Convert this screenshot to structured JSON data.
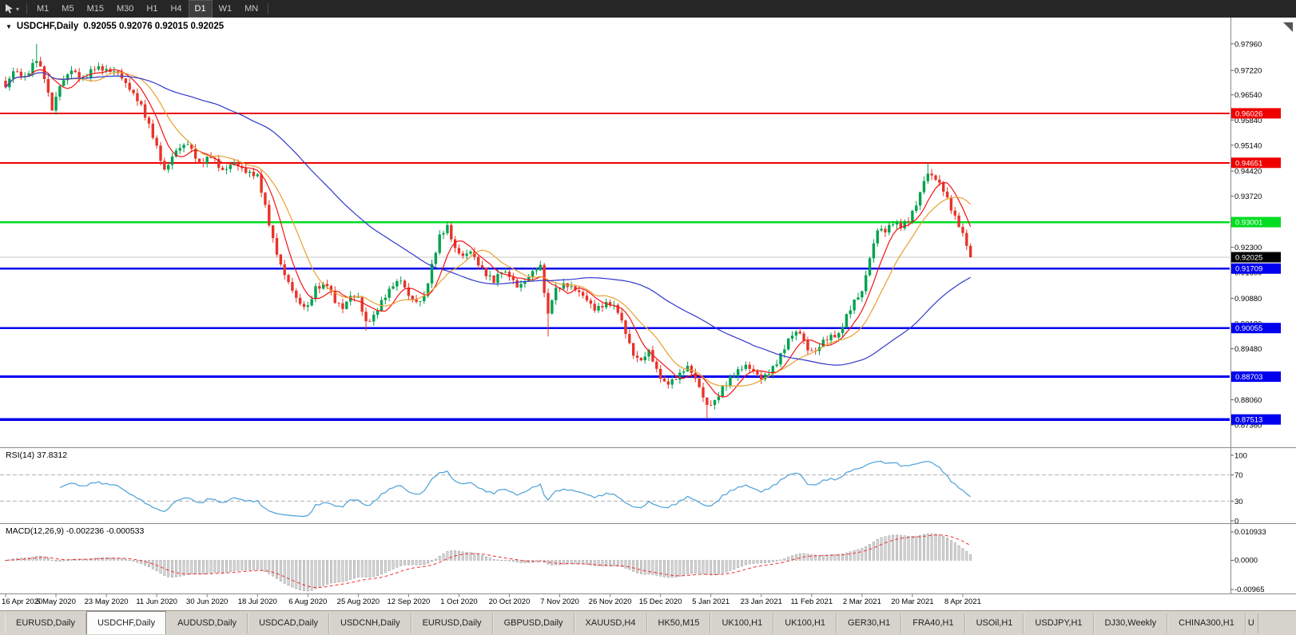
{
  "toolbar": {
    "timeframes": [
      "M1",
      "M5",
      "M15",
      "M30",
      "H1",
      "H4",
      "D1",
      "W1",
      "MN"
    ],
    "active_timeframe": "D1",
    "cursor_tool_icon": "cursor-arrow",
    "dropdown_caret": "▾"
  },
  "chart": {
    "collapse_icon": "▼",
    "symbol": "USDCHF,Daily",
    "ohlc": "0.92055 0.92076 0.92015 0.92025"
  },
  "chart_data": {
    "type": "candlestick",
    "symbol": "USDCHF",
    "timeframe": "Daily",
    "last_open": 0.92055,
    "last_high": 0.92076,
    "last_low": 0.92015,
    "current_price": 0.92025,
    "price_range": {
      "top": 0.986,
      "bottom": 0.8725
    },
    "price_axis_ticks": [
      "0.97960",
      "0.97220",
      "0.96540",
      "0.95840",
      "0.95140",
      "0.94420",
      "0.93720",
      "0.93020",
      "0.92300",
      "0.91600",
      "0.90880",
      "0.90180",
      "0.89480",
      "0.88780",
      "0.88060",
      "0.87360"
    ],
    "x_labels": [
      "16 Apr 2020",
      "5 May 2020",
      "23 May 2020",
      "11 Jun 2020",
      "30 Jun 2020",
      "18 Jul 2020",
      "6 Aug 2020",
      "25 Aug 2020",
      "12 Sep 2020",
      "1 Oct 2020",
      "20 Oct 2020",
      "7 Nov 2020",
      "26 Nov 2020",
      "15 Dec 2020",
      "5 Jan 2021",
      "23 Jan 2021",
      "11 Feb 2021",
      "2 Mar 2021",
      "20 Mar 2021",
      "8 Apr 2021"
    ],
    "candle_count": 250,
    "candles_per_label": 13,
    "levels": [
      {
        "price": 0.96026,
        "color": "#ee0000",
        "width": 2
      },
      {
        "price": 0.94651,
        "color": "#ee0000",
        "width": 2
      },
      {
        "price": 0.93001,
        "color": "#00dd22",
        "width": 2.5
      },
      {
        "price": 0.91709,
        "color": "#0000ee",
        "width": 2.5
      },
      {
        "price": 0.90055,
        "color": "#0000ee",
        "width": 2.5
      },
      {
        "price": 0.88703,
        "color": "#0000ee",
        "width": 3
      },
      {
        "price": 0.87513,
        "color": "#0000ee",
        "width": 3.5
      }
    ],
    "candle_up_color": "#00a24f",
    "candle_down_color": "#e8332a",
    "moving_averages": [
      {
        "period": 7,
        "color": "#f01414"
      },
      {
        "period": 14,
        "color": "#e8a030"
      },
      {
        "period": 55,
        "color": "#3038cc"
      }
    ],
    "close_path": [
      [
        0,
        0.9675
      ],
      [
        2,
        0.972
      ],
      [
        5,
        0.97
      ],
      [
        8,
        0.9755
      ],
      [
        10,
        0.9705
      ],
      [
        12,
        0.9615
      ],
      [
        14,
        0.968
      ],
      [
        17,
        0.9725
      ],
      [
        20,
        0.97
      ],
      [
        23,
        0.973
      ],
      [
        26,
        0.972
      ],
      [
        29,
        0.9715
      ],
      [
        32,
        0.967
      ],
      [
        35,
        0.962
      ],
      [
        38,
        0.954
      ],
      [
        41,
        0.9445
      ],
      [
        44,
        0.95
      ],
      [
        47,
        0.952
      ],
      [
        50,
        0.9465
      ],
      [
        53,
        0.9485
      ],
      [
        56,
        0.944
      ],
      [
        59,
        0.9465
      ],
      [
        62,
        0.944
      ],
      [
        65,
        0.9425
      ],
      [
        67,
        0.934
      ],
      [
        69,
        0.925
      ],
      [
        71,
        0.918
      ],
      [
        74,
        0.911
      ],
      [
        76,
        0.907
      ],
      [
        78,
        0.9065
      ],
      [
        80,
        0.912
      ],
      [
        83,
        0.913
      ],
      [
        85,
        0.908
      ],
      [
        87,
        0.906
      ],
      [
        89,
        0.9095
      ],
      [
        91,
        0.909
      ],
      [
        93,
        0.902
      ],
      [
        95,
        0.9035
      ],
      [
        97,
        0.9075
      ],
      [
        100,
        0.9125
      ],
      [
        102,
        0.914
      ],
      [
        104,
        0.9095
      ],
      [
        106,
        0.9075
      ],
      [
        108,
        0.909
      ],
      [
        110,
        0.918
      ],
      [
        112,
        0.9265
      ],
      [
        114,
        0.929
      ],
      [
        116,
        0.9225
      ],
      [
        118,
        0.9205
      ],
      [
        120,
        0.922
      ],
      [
        122,
        0.9185
      ],
      [
        124,
        0.9155
      ],
      [
        126,
        0.9135
      ],
      [
        128,
        0.916
      ],
      [
        130,
        0.915
      ],
      [
        132,
        0.912
      ],
      [
        134,
        0.9135
      ],
      [
        136,
        0.916
      ],
      [
        138,
        0.9175
      ],
      [
        140,
        0.904
      ],
      [
        141,
        0.909
      ],
      [
        142,
        0.9115
      ],
      [
        144,
        0.913
      ],
      [
        146,
        0.912
      ],
      [
        148,
        0.9105
      ],
      [
        150,
        0.9085
      ],
      [
        152,
        0.906
      ],
      [
        154,
        0.907
      ],
      [
        156,
        0.9075
      ],
      [
        158,
        0.905
      ],
      [
        160,
        0.899
      ],
      [
        162,
        0.893
      ],
      [
        164,
        0.8915
      ],
      [
        166,
        0.894
      ],
      [
        168,
        0.8885
      ],
      [
        170,
        0.885
      ],
      [
        172,
        0.8858
      ],
      [
        174,
        0.888
      ],
      [
        176,
        0.89
      ],
      [
        178,
        0.8865
      ],
      [
        180,
        0.8815
      ],
      [
        181,
        0.879
      ],
      [
        183,
        0.8805
      ],
      [
        185,
        0.884
      ],
      [
        187,
        0.8865
      ],
      [
        189,
        0.8885
      ],
      [
        191,
        0.89
      ],
      [
        193,
        0.8885
      ],
      [
        195,
        0.8865
      ],
      [
        197,
        0.888
      ],
      [
        199,
        0.8905
      ],
      [
        201,
        0.895
      ],
      [
        203,
        0.899
      ],
      [
        205,
        0.8995
      ],
      [
        207,
        0.8945
      ],
      [
        209,
        0.894
      ],
      [
        211,
        0.897
      ],
      [
        213,
        0.8985
      ],
      [
        215,
        0.899
      ],
      [
        217,
        0.904
      ],
      [
        219,
        0.908
      ],
      [
        221,
        0.9105
      ],
      [
        223,
        0.92
      ],
      [
        225,
        0.928
      ],
      [
        227,
        0.9275
      ],
      [
        229,
        0.9295
      ],
      [
        231,
        0.9285
      ],
      [
        233,
        0.9305
      ],
      [
        235,
        0.935
      ],
      [
        237,
        0.9415
      ],
      [
        238,
        0.9435
      ],
      [
        240,
        0.942
      ],
      [
        242,
        0.939
      ],
      [
        244,
        0.934
      ],
      [
        246,
        0.9295
      ],
      [
        248,
        0.924
      ],
      [
        249,
        0.9203
      ]
    ],
    "wick_events": [
      [
        8,
        "h",
        0.9796
      ],
      [
        93,
        "l",
        0.8998
      ],
      [
        140,
        "l",
        0.8982
      ],
      [
        181,
        "l",
        0.8753
      ],
      [
        238,
        "h",
        0.9465
      ]
    ]
  },
  "panels": {
    "rsi": {
      "label": "RSI(14) 37.8312",
      "period": 14,
      "value": 37.8312,
      "axis_ticks": [
        100,
        70,
        30,
        0
      ],
      "guide_levels": [
        70,
        30
      ],
      "line_color": "#4aa0d8"
    },
    "macd": {
      "label": "MACD(12,26,9) -0.002236 -0.000533",
      "fast": 12,
      "slow": 26,
      "signal": 9,
      "main_value": -0.002236,
      "signal_value": -0.000533,
      "axis_top_label": "0.010933",
      "axis_zero_label": "0.0000",
      "axis_bottom_label": "-0.00965",
      "histogram_color": "#d6d6d6",
      "histogram_stroke": "#9a9a9a",
      "signal_color": "#f03030"
    }
  },
  "tabs": {
    "items": [
      "EURUSD,Daily",
      "USDCHF,Daily",
      "AUDUSD,Daily",
      "USDCAD,Daily",
      "USDCNH,Daily",
      "EURUSD,Daily",
      "GBPUSD,Daily",
      "XAUUSD,H4",
      "HK50,M15",
      "UK100,H1",
      "UK100,H1",
      "GER30,H1",
      "FRA40,H1",
      "USOil,H1",
      "USDJPY,H1",
      "DJ30,Weekly",
      "CHINA300,H1"
    ],
    "active_index": 1,
    "partial_label": "U"
  }
}
